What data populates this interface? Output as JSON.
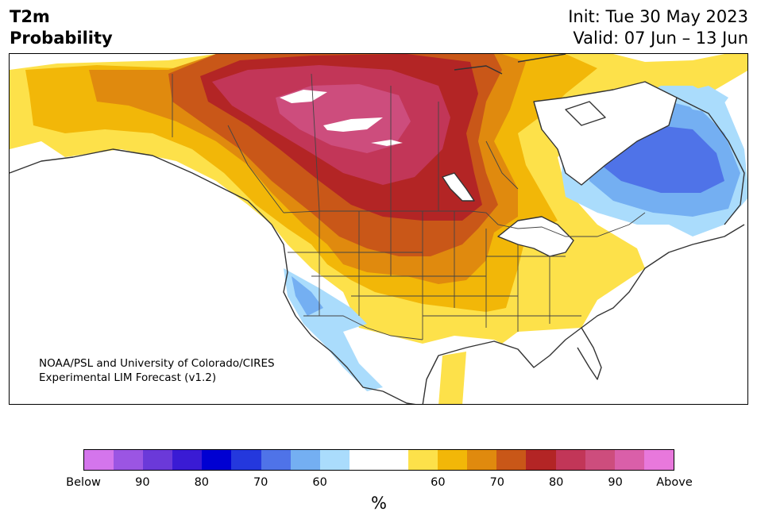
{
  "title": {
    "line1": "T2m",
    "line2": "Probability",
    "init": "Init: Tue 30 May 2023",
    "valid": "Valid: 07 Jun – 13 Jun"
  },
  "credit": {
    "line1": "NOAA/PSL and University of Colorado/CIRES",
    "line2": "Experimental LIM Forecast (v1.2)"
  },
  "colorbar": {
    "colors": [
      "#d475ec",
      "#9b55e3",
      "#6b39d9",
      "#3a1bd4",
      "#0000d2",
      "#2438dd",
      "#4f73e8",
      "#74aff2",
      "#aadcfc",
      "#ffffff",
      "#ffffff",
      "#fde14a",
      "#f2b708",
      "#e08a0e",
      "#c95718",
      "#b32525",
      "#c23658",
      "#cd4d7d",
      "#da5fa9",
      "#e878dc"
    ],
    "ticks": [
      "Below",
      "90",
      "80",
      "70",
      "60",
      "60",
      "70",
      "80",
      "90",
      "Above"
    ],
    "unit": "%"
  },
  "map_colors": {
    "ocean": "#ffffff",
    "land_neutral": "#ffffff",
    "coast": "#333333"
  }
}
